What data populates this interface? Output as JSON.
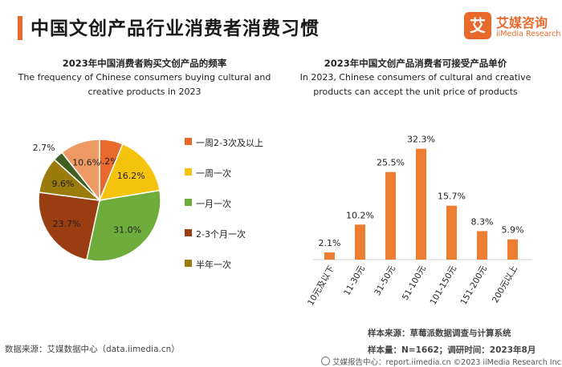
{
  "page": {
    "title": "中国文创产品行业消费者消费习惯"
  },
  "logo": {
    "mark": "艾",
    "cn": "艾媒咨询",
    "en": "iiMedia Research"
  },
  "colors": {
    "accent": "#e8692c"
  },
  "chart_data": [
    {
      "type": "pie",
      "title": "2023年中国消费者购买文创产品的频率",
      "subtitle": "The frequency of Chinese consumers buying cultural and creative products in 2023",
      "categories": [
        "一周2-3次及以上",
        "一周一次",
        "一月一次",
        "2-3个月一次",
        "半年一次",
        "",
        ""
      ],
      "values": [
        6.2,
        16.2,
        31.0,
        23.7,
        9.6,
        2.7,
        10.6
      ],
      "value_labels": [
        "6.2%",
        "16.2%",
        "31.0%",
        "23.7%",
        "9.6%",
        "2.7%",
        "10.6%"
      ],
      "colors": [
        "#e8692c",
        "#f5c20e",
        "#6eac3c",
        "#9a3d12",
        "#9a7b0c",
        "#3e5e22",
        "#ee9a64"
      ],
      "legend": [
        "一周2-3次及以上",
        "一周一次",
        "一月一次",
        "2-3个月一次",
        "半年一次"
      ],
      "legend_colors": [
        "#e8692c",
        "#f5c20e",
        "#6eac3c",
        "#9a3d12",
        "#9a7b0c"
      ]
    },
    {
      "type": "bar",
      "title": "2023年中国文创产品消费者可接受产品单价",
      "subtitle": "In 2023, Chinese consumers of cultural and creative products can accept the unit price of products",
      "categories": [
        "10元及以下",
        "11-30元",
        "31-50元",
        "51-100元",
        "101-150元",
        "151-200元",
        "200元以上"
      ],
      "values": [
        2.1,
        10.2,
        25.5,
        32.3,
        15.7,
        8.3,
        5.9
      ],
      "value_labels": [
        "2.1%",
        "10.2%",
        "25.5%",
        "32.3%",
        "15.7%",
        "8.3%",
        "5.9%"
      ],
      "bar_color": "#ed7d31",
      "ylim": [
        0,
        35
      ]
    }
  ],
  "footer": {
    "source_left": "数据来源：艾媒数据中心（data.iimedia.cn）",
    "sample_source": "样本来源：草莓派数据调查与计算系统",
    "sample_size": "样本量：N=1662；调研时间：2023年8月",
    "bottom": "艾媒报告中心：report.iimedia.cn  ©2023  iiMedia Research  Inc"
  }
}
